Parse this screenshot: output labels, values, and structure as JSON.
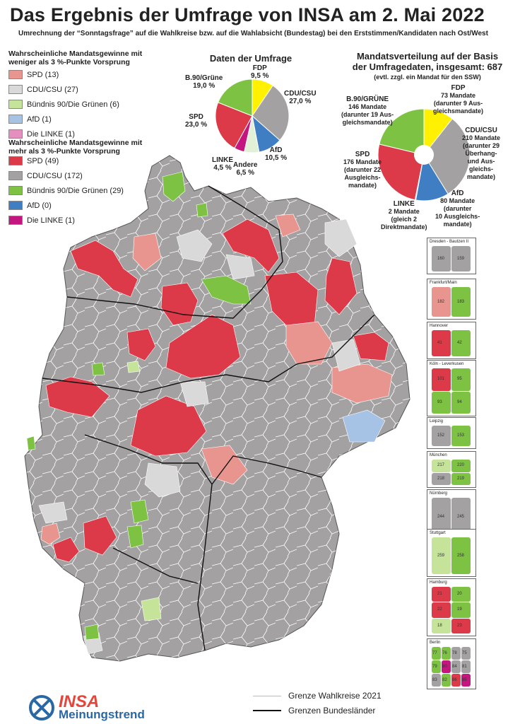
{
  "title": "Das Ergebnis der Umfrage von INSA am 2. Mai 2022",
  "subtitle": "Umrechnung der “Sonntagsfrage” auf die Wahlkreise bzw. auf die Wahlabsicht (Bundestag) bei den Erststimmen/Kandidaten nach Ost/West",
  "legend_low": {
    "heading": "Wahrscheinliche Mandatsgewinne mit weniger als 3 %-Punkte Vorsprung",
    "items": [
      {
        "label": "SPD (13)",
        "color": "#e9958f"
      },
      {
        "label": "CDU/CSU (27)",
        "color": "#d9d9d9"
      },
      {
        "label": "Bündnis 90/Die Grünen (6)",
        "color": "#c5e49a"
      },
      {
        "label": "AfD (1)",
        "color": "#a6c3e6"
      },
      {
        "label": "Die LINKE (1)",
        "color": "#e58fbf"
      }
    ]
  },
  "legend_high": {
    "heading": "Wahrscheinliche Mandatsgewinne mit mehr als 3 %-Punkte Vorsprung",
    "items": [
      {
        "label": "SPD (49)",
        "color": "#dc3a48"
      },
      {
        "label": "CDU/CSU (172)",
        "color": "#a3a1a2"
      },
      {
        "label": "Bündnis 90/Die Grünen (29)",
        "color": "#7dc242"
      },
      {
        "label": "AfD (0)",
        "color": "#3f7ec3"
      },
      {
        "label": "Die LINKE (1)",
        "color": "#c5157e"
      }
    ]
  },
  "poll_chart": {
    "title": "Daten der Umfrage",
    "slices": [
      {
        "name": "FDP",
        "value": 9.5,
        "value_label": "9,5 %",
        "color": "#fff100"
      },
      {
        "name": "CDU/CSU",
        "value": 27.0,
        "value_label": "27,0 %",
        "color": "#a3a1a2"
      },
      {
        "name": "AfD",
        "value": 10.5,
        "value_label": "10,5 %",
        "color": "#3f7ec3"
      },
      {
        "name": "Andere",
        "value": 6.5,
        "value_label": "6,5 %",
        "color": "#e3f0d8"
      },
      {
        "name": "LINKE",
        "value": 4.5,
        "value_label": "4,5 %",
        "color": "#c5157e"
      },
      {
        "name": "SPD",
        "value": 23.0,
        "value_label": "23,0 %",
        "color": "#dc3a48"
      },
      {
        "name": "B.90/Grüne",
        "value": 19.0,
        "value_label": "19,0 %",
        "color": "#7dc242"
      }
    ]
  },
  "seat_chart": {
    "title1": "Mandatsverteilung auf der Basis",
    "title2": "der Umfragedaten, insgesamt: 687",
    "note": "(evtl. zzgl. ein Mandat für den SSW)",
    "slices": [
      {
        "name": "FDP",
        "value": 73,
        "color": "#fff100",
        "lines": [
          "73 Mandate",
          "(darunter 9 Aus-",
          "gleichsmandate)"
        ]
      },
      {
        "name": "CDU/CSU",
        "value": 210,
        "color": "#a3a1a2",
        "lines": [
          "210 Mandate",
          "(darunter 29",
          "Überhang-",
          "und Aus-",
          "gleichs-",
          "mandate)"
        ]
      },
      {
        "name": "AfD",
        "value": 80,
        "color": "#3f7ec3",
        "lines": [
          "80 Mandate",
          "(darunter",
          "10 Ausgleichs-",
          "mandate)"
        ]
      },
      {
        "name": "LINKE",
        "value": 2,
        "color": "#c5157e",
        "lines": [
          "2 Mandate",
          "(gleich 2",
          "Direktmandate)"
        ]
      },
      {
        "name": "SPD",
        "value": 176,
        "color": "#dc3a48",
        "lines": [
          "176 Mandate",
          "(darunter 22",
          "Ausgleichs-",
          "mandate)"
        ]
      },
      {
        "name": "B.90/GRÜNE",
        "value": 146,
        "color": "#7dc242",
        "lines": [
          "146 Mandate",
          "(darunter 19 Aus-",
          "gleichsmandate)"
        ]
      }
    ]
  },
  "insets": [
    {
      "name": "Dresden - Bautzen II",
      "numbers": [
        "160",
        "159"
      ]
    },
    {
      "name": "Frankfurt/Main",
      "numbers": [
        "182",
        "183"
      ]
    },
    {
      "name": "Hannover",
      "numbers": [
        "41",
        "42"
      ]
    },
    {
      "name": "Köln - Leverkusen",
      "numbers": [
        "101",
        "95",
        "93",
        "94"
      ]
    },
    {
      "name": "Leipzig",
      "numbers": [
        "152",
        "153"
      ]
    },
    {
      "name": "München",
      "numbers": [
        "217",
        "220",
        "218",
        "219"
      ]
    },
    {
      "name": "Nürnberg",
      "numbers": [
        "244",
        "245"
      ]
    },
    {
      "name": "Stuttgart",
      "numbers": [
        "259",
        "258"
      ]
    },
    {
      "name": "Hamburg",
      "numbers": [
        "21",
        "20",
        "22",
        "19",
        "18",
        "23"
      ]
    },
    {
      "name": "Berlin",
      "numbers": [
        "77",
        "76",
        "78",
        "75",
        "79",
        "80",
        "84",
        "81",
        "83",
        "82",
        "86",
        "85"
      ]
    }
  ],
  "map_legend": {
    "wahlkreise": "Grenze Wahlkreise 2021",
    "bundeslaender": "Grenzen Bundesländer"
  },
  "logo": {
    "brand": "INSA",
    "sub": "Meinungstrend"
  }
}
